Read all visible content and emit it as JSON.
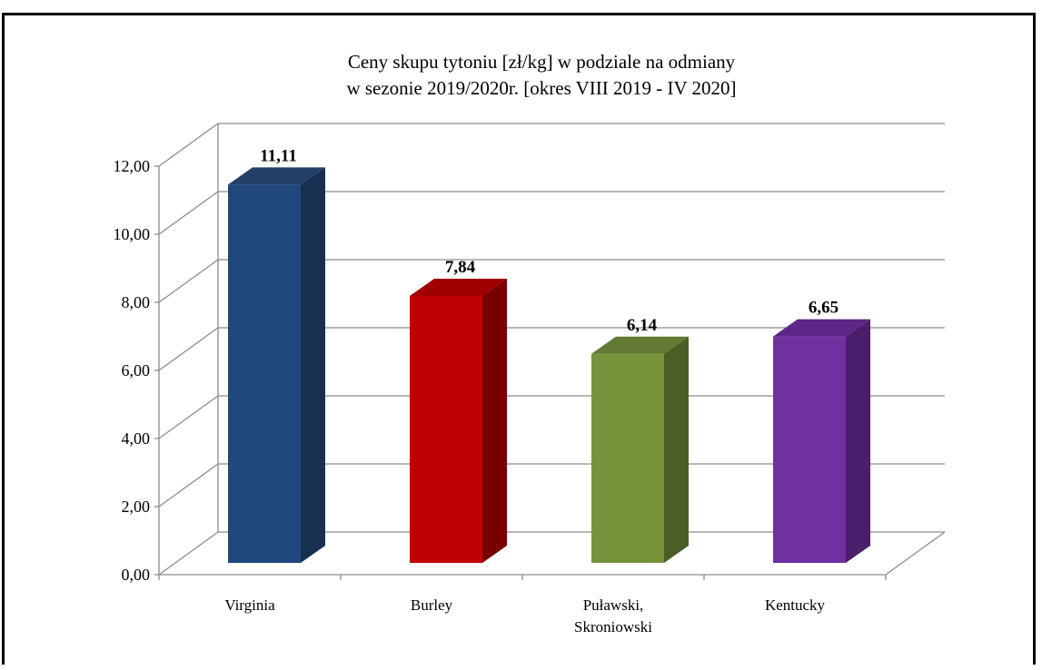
{
  "chart_data": {
    "type": "bar",
    "title_lines": [
      "Ceny skupu tytoniu [zł/kg]  w podziale na odmiany",
      "w sezonie 2019/2020r.    [okres VIII 2019 - IV 2020]"
    ],
    "categories": [
      [
        "Virginia"
      ],
      [
        "Burley"
      ],
      [
        "Puławski,",
        "Skroniowski"
      ],
      [
        "Kentucky"
      ]
    ],
    "values": [
      11.11,
      7.84,
      6.14,
      6.65
    ],
    "value_labels": [
      "11,11",
      "7,84",
      "6,14",
      "6,65"
    ],
    "colors": [
      {
        "front": "#1f497d",
        "top": "#243f6a",
        "side": "#17304f"
      },
      {
        "front": "#c00000",
        "top": "#a00000",
        "side": "#7a0000"
      },
      {
        "front": "#77933c",
        "top": "#627a31",
        "side": "#4b5e25"
      },
      {
        "front": "#7030a0",
        "top": "#5e2787",
        "side": "#4a1e6a"
      }
    ],
    "yticks": [
      "0,00",
      "2,00",
      "4,00",
      "6,00",
      "8,00",
      "10,00",
      "12,00"
    ],
    "ylim": [
      0,
      12
    ],
    "grid": true,
    "legend": "none"
  }
}
